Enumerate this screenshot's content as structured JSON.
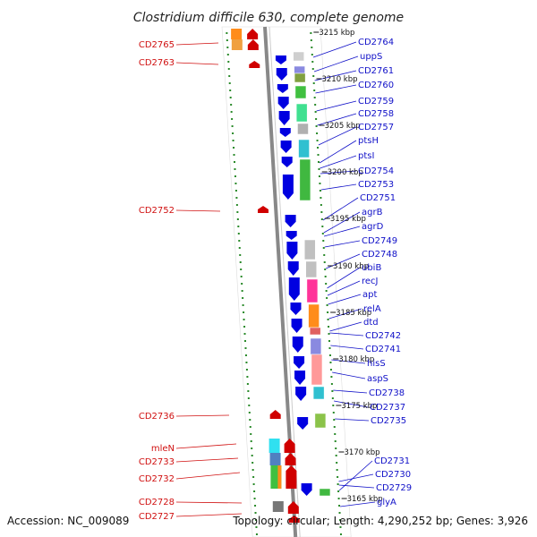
{
  "header": {
    "title": "Clostridium difficile 630, complete genome"
  },
  "footer": {
    "accession": "Accession: NC_009089",
    "summary": "Topology: circular; Length: 4,290,252 bp; Genes: 3,926"
  },
  "scale_labels": [
    "3215 kbp",
    "3210 kbp",
    "3205 kbp",
    "3200 kbp",
    "3195 kbp",
    "3190 kbp",
    "3185 kbp",
    "3180 kbp",
    "3175 kbp",
    "3170 kbp",
    "3165 kbp"
  ],
  "genes_right": [
    "CD2764",
    "uppS",
    "CD2761",
    "CD2760",
    "CD2759",
    "CD2758",
    "CD2757",
    "ptsH",
    "ptsI",
    "CD2754",
    "CD2753",
    "CD2751",
    "agrB",
    "agrD",
    "CD2749",
    "CD2748",
    "ubiB",
    "recJ",
    "apt",
    "relA",
    "dtd",
    "CD2742",
    "CD2741",
    "hisS",
    "aspS",
    "CD2738",
    "CD2737",
    "CD2735",
    "CD2731",
    "CD2730",
    "CD2729",
    "glyA"
  ],
  "genes_left": [
    "CD2765",
    "CD2763",
    "CD2752",
    "CD2736",
    "mleN",
    "CD2733",
    "CD2732",
    "CD2728",
    "CD2727"
  ],
  "colors": {
    "right_label": "#1010c8",
    "left_label": "#d01010",
    "forward_gene": "#d00000",
    "reverse_gene": "#0000e0",
    "dot_track": "#2a8a2a",
    "backbone": "#888888"
  }
}
